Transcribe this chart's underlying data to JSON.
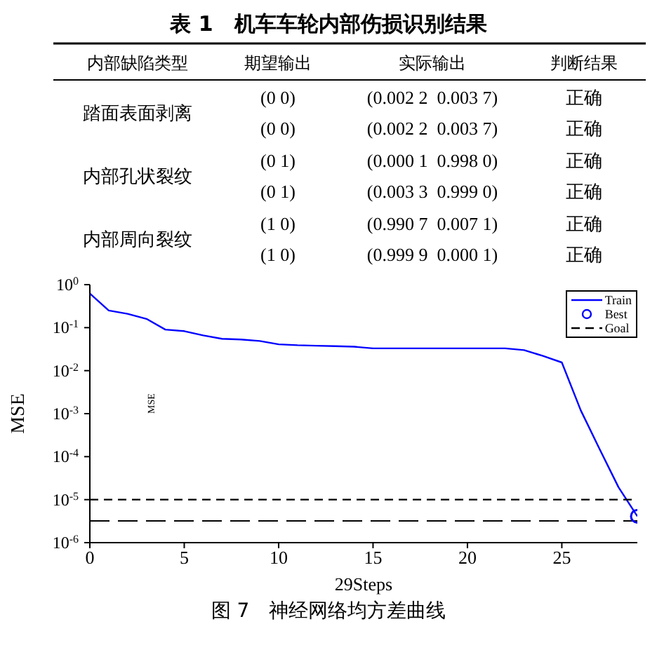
{
  "chart_data": [
    {
      "type": "other",
      "title": "表 1　机车车轮内部伤损识别结果",
      "categories": [
        "内部缺陷类型",
        "期望输出",
        "实际输出",
        "判断结果"
      ],
      "annotations": [
        "踏面表面剥离",
        "(0 0)",
        "(0.002 2  0.003 7)",
        "正确",
        "(0 0)",
        "(0.002 2  0.003 7)",
        "正确",
        "内部孔状裂纹",
        "(0 1)",
        "(0.000 1  0.998 0)",
        "正确",
        "(0 1)",
        "(0.003 3  0.999 0)",
        "正确",
        "内部周向裂纹",
        "(1 0)",
        "(0.990 7  0.007 1)",
        "正确",
        "(1 0)",
        "(0.999 9  0.000 1)",
        "正确"
      ]
    },
    {
      "type": "line",
      "title": "图 7　神经网络均方差曲线",
      "xlabel": "29Steps",
      "ylabel": "MSE",
      "log": "y",
      "grid": false,
      "legend": "top right",
      "xlim": [
        0,
        29
      ],
      "xticks": [
        0,
        5,
        10,
        15,
        20,
        25
      ],
      "ylim": [
        1e-06,
        1
      ],
      "yticks": [
        {
          "value": 1,
          "label": "10$^{0}$"
        },
        {
          "value": 0.1,
          "label": "10$^{-1}$"
        },
        {
          "value": 0.01,
          "label": "10$^{-2}$"
        },
        {
          "value": 0.001,
          "label": "10$^{-3}$"
        },
        {
          "value": 0.0001,
          "label": "10$^{-4}$"
        },
        {
          "value": 1e-05,
          "label": "10$^{-5}$"
        },
        {
          "value": 1e-06,
          "label": "10$^{-6}$"
        }
      ],
      "series": [
        {
          "name": "Train",
          "type": "line",
          "color": "#0000ff",
          "line_style": "solid",
          "marker": "none",
          "x": [
            0,
            1,
            2,
            3,
            4,
            5,
            6,
            7,
            8,
            9,
            10,
            11,
            12,
            13,
            14,
            15,
            16,
            17,
            18,
            19,
            20,
            21,
            22,
            23,
            24,
            25,
            26,
            27,
            28,
            29
          ],
          "values": [
            0.62,
            0.25,
            0.21,
            0.16,
            0.09,
            0.083,
            0.066,
            0.055,
            0.053,
            0.049,
            0.041,
            0.039,
            0.038,
            0.037,
            0.036,
            0.033,
            0.033,
            0.033,
            0.033,
            0.033,
            0.033,
            0.033,
            0.033,
            0.03,
            0.022,
            0.0155,
            0.0012,
            0.00015,
            1.95e-05,
            4.1e-06
          ]
        },
        {
          "name": "Best",
          "type": "scatter",
          "color": "#0000ff",
          "marker": "circle",
          "x": [
            29
          ],
          "values": [
            4.1e-06
          ]
        },
        {
          "name": "Goal",
          "type": "line",
          "color": "#000000",
          "line_style": "dashed",
          "marker": "none",
          "x": [
            0,
            29
          ],
          "values": [
            1e-05,
            1e-05
          ]
        }
      ],
      "ref_lines": [
        {
          "axis": "y",
          "value": 3.2e-06,
          "color": "#000000",
          "line_style": "dashed"
        }
      ],
      "annotations": [
        "MSE"
      ]
    }
  ]
}
